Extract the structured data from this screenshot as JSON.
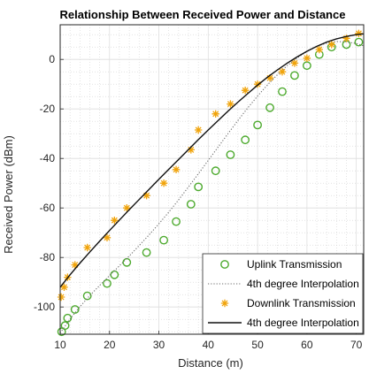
{
  "chart_data": {
    "type": "scatter",
    "title": "Relationship Between Received Power and Distance",
    "xlabel": "Distance (m)",
    "ylabel": "Received Power (dBm)",
    "xlim": [
      10,
      71.5
    ],
    "ylim": [
      -111,
      14
    ],
    "xticks": [
      10,
      20,
      30,
      40,
      50,
      60,
      70
    ],
    "yticks": [
      -100,
      -80,
      -60,
      -40,
      -20,
      0
    ],
    "grid": true,
    "minor_grid": true,
    "legend_position": "bottom-right",
    "series": [
      {
        "name": "Uplink Transmission",
        "kind": "markers",
        "marker": "circle",
        "color": "#4daa2e",
        "x": [
          10.3,
          11,
          11.5,
          13,
          15.5,
          19.5,
          21,
          23.5,
          27.5,
          31,
          33.5,
          36.5,
          38,
          41.5,
          44.5,
          47.5,
          50,
          52.5,
          55,
          57.5,
          60,
          62.5,
          65,
          68,
          70.5
        ],
        "y": [
          -110,
          -107.5,
          -104.5,
          -101,
          -95.5,
          -90.5,
          -87,
          -82,
          -78,
          -73,
          -65.5,
          -58.5,
          -51.5,
          -45,
          -38.5,
          -32.5,
          -26.5,
          -19.5,
          -13,
          -6.5,
          -2.5,
          2,
          5,
          6,
          7
        ]
      },
      {
        "name": "4th degree Interpolation",
        "kind": "line",
        "dash": "dotted",
        "color": "#6b6b6b",
        "x": [
          10,
          12,
          14,
          16,
          18,
          20,
          22,
          24,
          26,
          28,
          30,
          32,
          34,
          36,
          38,
          40,
          42,
          44,
          46,
          48,
          50,
          52,
          54,
          56,
          58,
          60,
          62,
          64,
          66,
          68,
          70,
          71.5
        ],
        "y": [
          -110.5,
          -104.9,
          -99.9,
          -95.4,
          -91.3,
          -87.3,
          -83.4,
          -79.4,
          -75.2,
          -70.9,
          -66.4,
          -61.7,
          -56.7,
          -51.5,
          -46.2,
          -40.8,
          -35.4,
          -30.0,
          -24.7,
          -19.6,
          -14.8,
          -10.3,
          -6.2,
          -2.5,
          0.6,
          3.2,
          5.3,
          6.6,
          7.2,
          7.1,
          6.4,
          5.5
        ]
      },
      {
        "name": "Downlink Transmission",
        "kind": "markers",
        "marker": "star",
        "color": "#f0a30a",
        "x": [
          10.2,
          10.8,
          11.5,
          13,
          15.5,
          19.5,
          21,
          23.5,
          27.5,
          31,
          33.5,
          36.5,
          38,
          41.5,
          44.5,
          47.5,
          50,
          52.5,
          55,
          57.5,
          60,
          62.5,
          65,
          68,
          70.5
        ],
        "y": [
          -96,
          -92,
          -88,
          -83,
          -76,
          -72,
          -65,
          -60,
          -55,
          -50,
          -44.5,
          -36.5,
          -28.5,
          -22,
          -18,
          -12.5,
          -10,
          -7.5,
          -5,
          -1.5,
          0.5,
          4,
          6,
          8.5,
          10.5
        ]
      },
      {
        "name": "4th degree Interpolation",
        "kind": "line",
        "dash": "solid",
        "color": "#111111",
        "x": [
          10,
          12,
          14,
          16,
          18,
          20,
          22,
          24,
          26,
          28,
          30,
          32,
          34,
          36,
          38,
          40,
          42,
          44,
          46,
          48,
          50,
          52,
          54,
          56,
          58,
          60,
          62,
          64,
          66,
          68,
          70,
          71.5
        ],
        "y": [
          -92.0,
          -87.0,
          -82.3,
          -77.8,
          -73.4,
          -69.1,
          -64.9,
          -60.7,
          -56.6,
          -52.5,
          -48.4,
          -44.4,
          -40.4,
          -36.4,
          -32.4,
          -28.5,
          -24.7,
          -20.9,
          -17.3,
          -13.8,
          -10.4,
          -7.2,
          -4.3,
          -1.5,
          1.0,
          3.3,
          5.3,
          7.0,
          8.3,
          9.3,
          10.0,
          10.3
        ]
      }
    ]
  }
}
